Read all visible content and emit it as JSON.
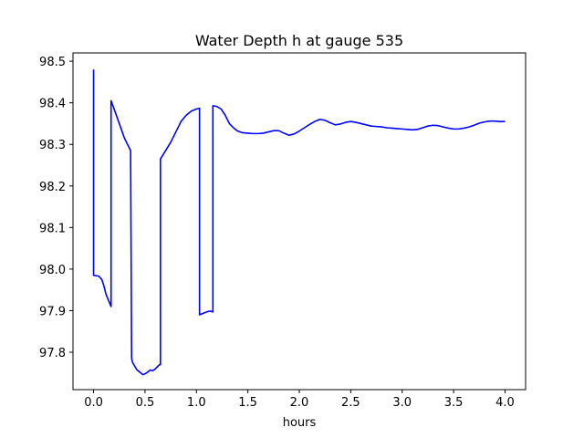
{
  "chart_data": {
    "type": "line",
    "title": "Water Depth h at gauge 535",
    "xlabel": "hours",
    "ylabel": "",
    "xlim": [
      -0.2,
      4.2
    ],
    "ylim": [
      97.71,
      98.52
    ],
    "grid": false,
    "x_ticks": [
      0.0,
      0.5,
      1.0,
      1.5,
      2.0,
      2.5,
      3.0,
      3.5,
      4.0
    ],
    "x_tick_labels": [
      "0.0",
      "0.5",
      "1.0",
      "1.5",
      "2.0",
      "2.5",
      "3.0",
      "3.5",
      "4.0"
    ],
    "y_ticks": [
      97.8,
      97.9,
      98.0,
      98.1,
      98.2,
      98.3,
      98.4,
      98.5
    ],
    "y_tick_labels": [
      "97.8",
      "97.9",
      "98.0",
      "98.1",
      "98.2",
      "98.3",
      "98.4",
      "98.5"
    ],
    "series": [
      {
        "color": "#0000ff",
        "x": [
          0.0,
          0.0,
          0.05,
          0.08,
          0.1,
          0.12,
          0.17,
          0.17,
          0.2,
          0.25,
          0.3,
          0.36,
          0.37,
          0.38,
          0.42,
          0.45,
          0.48,
          0.5,
          0.53,
          0.55,
          0.58,
          0.6,
          0.62,
          0.64,
          0.65,
          0.65,
          0.7,
          0.75,
          0.8,
          0.85,
          0.9,
          0.95,
          1.0,
          1.03,
          1.03,
          1.06,
          1.1,
          1.13,
          1.16,
          1.16,
          1.2,
          1.24,
          1.28,
          1.32,
          1.36,
          1.4,
          1.45,
          1.5,
          1.55,
          1.6,
          1.65,
          1.7,
          1.75,
          1.8,
          1.85,
          1.9,
          1.95,
          2.0,
          2.05,
          2.1,
          2.15,
          2.2,
          2.25,
          2.3,
          2.35,
          2.4,
          2.45,
          2.5,
          2.55,
          2.6,
          2.65,
          2.7,
          2.75,
          2.8,
          2.85,
          2.9,
          2.95,
          3.0,
          3.05,
          3.1,
          3.15,
          3.2,
          3.25,
          3.3,
          3.35,
          3.4,
          3.45,
          3.5,
          3.55,
          3.6,
          3.65,
          3.7,
          3.75,
          3.8,
          3.85,
          3.9,
          3.95,
          4.0
        ],
        "values": [
          98.48,
          97.985,
          97.983,
          97.975,
          97.96,
          97.94,
          97.91,
          98.405,
          98.385,
          98.35,
          98.315,
          98.285,
          97.785,
          97.775,
          97.758,
          97.752,
          97.746,
          97.748,
          97.753,
          97.757,
          97.756,
          97.76,
          97.765,
          97.77,
          97.77,
          98.265,
          98.285,
          98.305,
          98.33,
          98.355,
          98.37,
          98.38,
          98.385,
          98.387,
          97.89,
          97.893,
          97.897,
          97.899,
          97.897,
          98.393,
          98.391,
          98.385,
          98.37,
          98.35,
          98.34,
          98.332,
          98.328,
          98.327,
          98.326,
          98.326,
          98.327,
          98.33,
          98.333,
          98.333,
          98.327,
          98.322,
          98.325,
          98.332,
          98.34,
          98.348,
          98.355,
          98.36,
          98.358,
          98.352,
          98.347,
          98.349,
          98.353,
          98.355,
          98.353,
          98.35,
          98.347,
          98.344,
          98.343,
          98.342,
          98.34,
          98.339,
          98.338,
          98.337,
          98.336,
          98.335,
          98.336,
          98.34,
          98.344,
          98.346,
          98.345,
          98.342,
          98.339,
          98.337,
          98.337,
          98.339,
          98.342,
          98.346,
          98.351,
          98.354,
          98.356,
          98.356,
          98.355,
          98.355
        ]
      }
    ]
  }
}
